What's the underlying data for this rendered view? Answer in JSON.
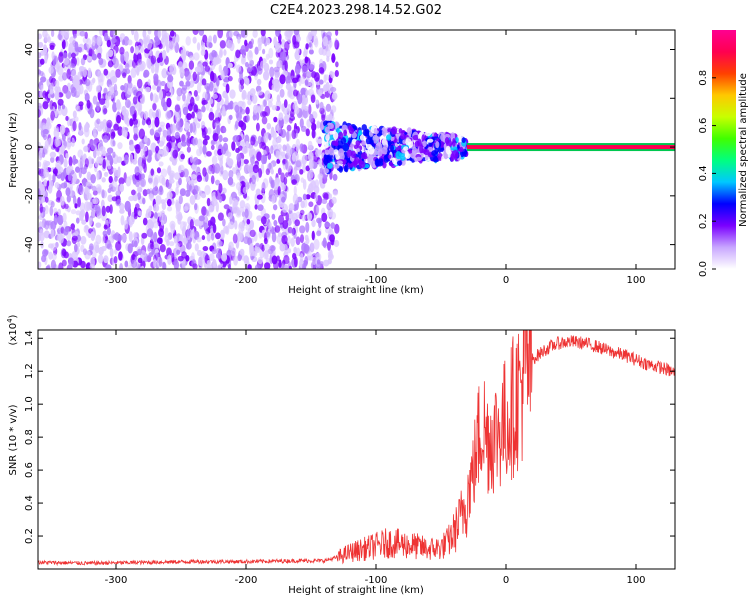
{
  "title": "C2E4.2023.298.14.52.G02",
  "chart_data": [
    {
      "type": "heatmap",
      "xlabel": "Height of straight line (km)",
      "ylabel": "Frequency (Hz)",
      "xlim": [
        -360,
        130
      ],
      "ylim": [
        -50,
        48
      ],
      "x_ticks": [
        -300,
        -200,
        -100,
        0,
        100
      ],
      "y_ticks": [
        -40,
        -20,
        0,
        20,
        40
      ],
      "colorbar": {
        "label": "Normalized spectral amplitude",
        "range": [
          0.0,
          1.0
        ],
        "ticks": [
          "0.0",
          "0.2",
          "0.4",
          "0.6",
          "0.8"
        ],
        "colors": [
          "#ffffff",
          "#c8a6ff",
          "#7a00ff",
          "#0000ff",
          "#00c8ff",
          "#00ff80",
          "#40ff00",
          "#c8ff00",
          "#ffc800",
          "#ff4000",
          "#ff0050",
          "#ff0090"
        ]
      },
      "features": [
        {
          "name": "noise",
          "x_range": [
            -360,
            -130
          ],
          "y_range": [
            -50,
            48
          ]
        },
        {
          "name": "signal-spread",
          "x_range": [
            -140,
            -30
          ],
          "y_center": 0,
          "y_halfwidth": 10,
          "max_amplitude": 0.35
        },
        {
          "name": "signal-narrow",
          "x_range": [
            -30,
            130
          ],
          "y_center": 0,
          "y_halfwidth": 1,
          "max_amplitude": 0.85
        }
      ]
    },
    {
      "type": "line",
      "xlabel": "Height of straight line (km)",
      "ylabel": "SNR (10 * v/v)",
      "y_multiplier": "(x10",
      "y_multiplier_exp": "4",
      "y_multiplier_close": ")",
      "xlim": [
        -360,
        130
      ],
      "ylim": [
        0.0,
        1.45
      ],
      "x_ticks": [
        -300,
        -200,
        -100,
        0,
        100
      ],
      "y_ticks": [
        "0.2",
        "0.4",
        "0.6",
        "0.8",
        "1.0",
        "1.2",
        "1.4"
      ],
      "color": "#ee3333",
      "series": [
        {
          "x": [
            -360,
            -320,
            -280,
            -240,
            -200,
            -160,
            -140,
            -130,
            -120,
            -110,
            -100,
            -90,
            -80,
            -70,
            -60,
            -50,
            -45,
            -40,
            -35,
            -30,
            -25,
            -20,
            -18,
            -15,
            -10,
            -5,
            0,
            5,
            10,
            15,
            20,
            25,
            30,
            35,
            40,
            50,
            60,
            70,
            80,
            90,
            100,
            110,
            120,
            130
          ],
          "y": [
            0.04,
            0.035,
            0.04,
            0.045,
            0.045,
            0.05,
            0.05,
            0.07,
            0.1,
            0.12,
            0.14,
            0.16,
            0.15,
            0.14,
            0.12,
            0.13,
            0.16,
            0.22,
            0.3,
            0.45,
            0.6,
            0.85,
            0.9,
            0.8,
            0.8,
            0.85,
            0.9,
            0.98,
            1.08,
            1.2,
            1.27,
            1.3,
            1.33,
            1.35,
            1.37,
            1.38,
            1.37,
            1.35,
            1.32,
            1.3,
            1.27,
            1.24,
            1.22,
            1.19
          ]
        }
      ]
    }
  ]
}
